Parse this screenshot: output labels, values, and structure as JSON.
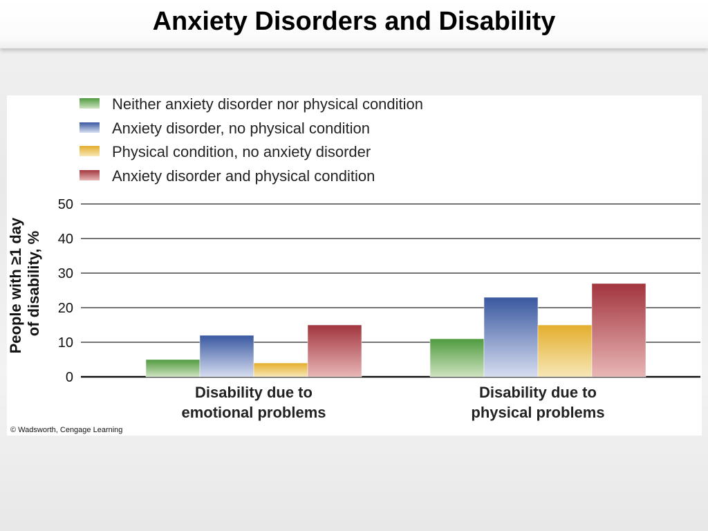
{
  "slide": {
    "title": "Anxiety Disorders and Disability",
    "credit": "© Wadsworth, Cengage Learning"
  },
  "chart_data": {
    "type": "bar",
    "categories": [
      [
        "Disability due to",
        "emotional problems"
      ],
      [
        "Disability due to",
        "physical problems"
      ]
    ],
    "series": [
      {
        "name": "Neither anxiety disorder nor physical condition",
        "values": [
          5,
          11
        ],
        "color": "#4f9a3f",
        "light": "#cfe3c0"
      },
      {
        "name": "Anxiety disorder, no physical condition",
        "values": [
          12,
          23
        ],
        "color": "#3a58a0",
        "light": "#d6ddf0"
      },
      {
        "name": "Physical condition, no anxiety disorder",
        "values": [
          4,
          15
        ],
        "color": "#e3ae2c",
        "light": "#f7e7b6"
      },
      {
        "name": "Anxiety disorder and physical condition",
        "values": [
          15,
          27
        ],
        "color": "#a2353e",
        "light": "#e8b6b6"
      }
    ],
    "ylabel_lines": [
      "People with ≥1 day",
      "of disability, %"
    ],
    "yticks": [
      0,
      10,
      20,
      30,
      40,
      50
    ],
    "ylim": [
      0,
      50
    ],
    "grid": true,
    "legend_position": "top"
  }
}
